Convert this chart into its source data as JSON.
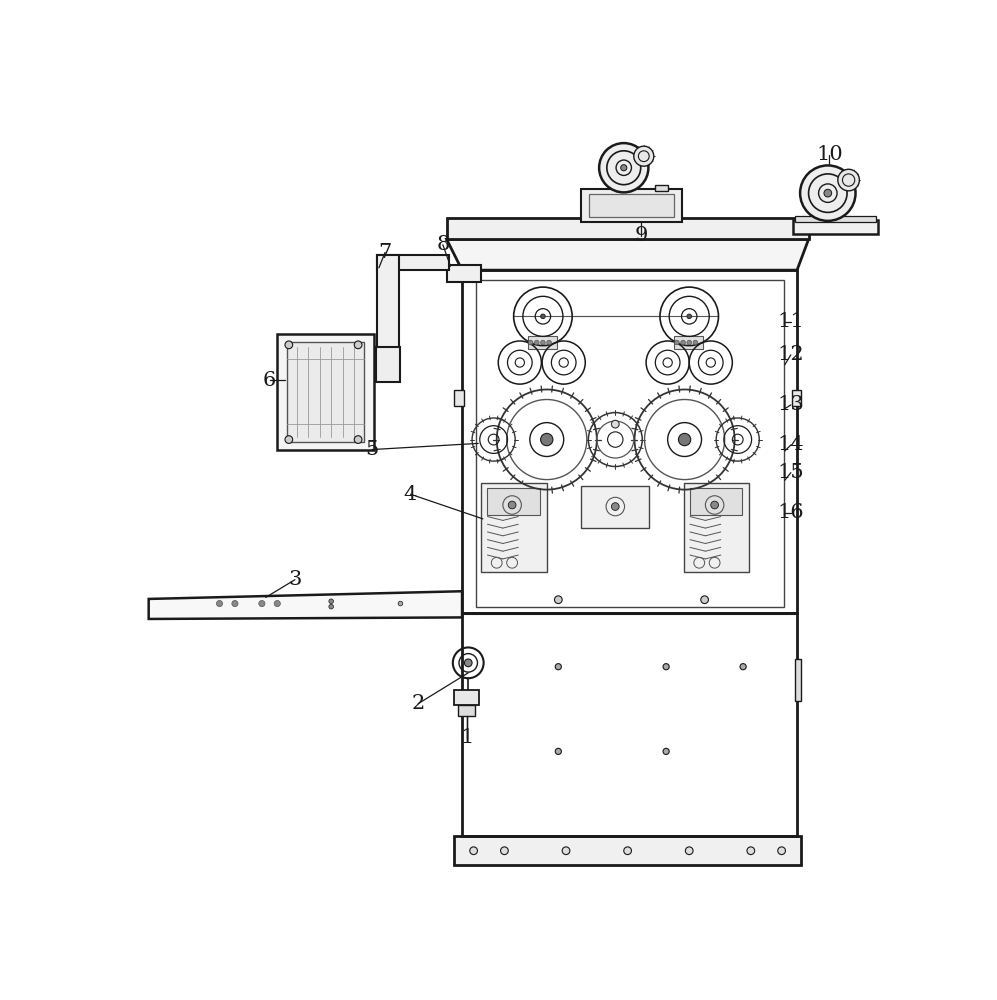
{
  "bg_color": "#ffffff",
  "line_color": "#1a1a1a",
  "gray1": "#cccccc",
  "gray2": "#888888",
  "gray3": "#555555",
  "figsize": [
    9.97,
    10.0
  ],
  "dpi": 100
}
